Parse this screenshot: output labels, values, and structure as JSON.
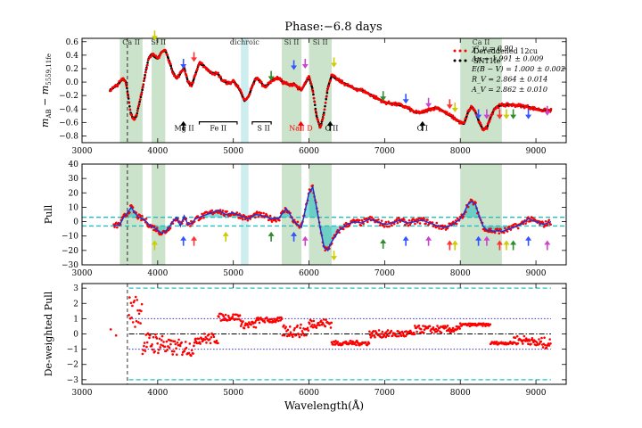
{
  "title": "Phase:−6.8 days",
  "chart_data": [
    {
      "type": "scatter",
      "panel": "top",
      "xlabel": "",
      "ylabel": "m_AB − m_5559,11fe",
      "ylabel_parts": {
        "base": "m",
        "sub1": "AB",
        "mid": " − m",
        "sub2": "5559,11fe"
      },
      "xlim": [
        3000,
        9400
      ],
      "ylim": [
        -0.9,
        0.65
      ],
      "xticks": [
        3000,
        4000,
        5000,
        6000,
        7000,
        8000,
        9000
      ],
      "yticks": [
        -0.8,
        -0.6,
        -0.4,
        -0.2,
        0.0,
        0.2,
        0.4,
        0.6
      ],
      "ytick_labels": [
        "−0.8",
        "−0.6",
        "−0.4",
        "−0.2",
        "0.0",
        "0.2",
        "0.4",
        "0.6"
      ],
      "legend": {
        "placement": "top-right",
        "entries": [
          {
            "label": "Dereddened 12cu",
            "color": "#ff0000"
          },
          {
            "label": "SN11fe",
            "color": "#000000"
          }
        ]
      },
      "stats": [
        "χ²_ν = 0.90",
        "Δμ = 1.991 ± 0.009",
        "E(B − V) = 1.000 ± 0.002",
        "R_V = 2.864 ± 0.014",
        "A_V = 2.862 ± 0.010"
      ],
      "bands": [
        {
          "x0": 3500,
          "x1": 3800,
          "color": "#2e8b2e",
          "label": "Ca II"
        },
        {
          "x0": 3920,
          "x1": 4100,
          "color": "#2e8b2e",
          "label": "Si II"
        },
        {
          "x0": 5100,
          "x1": 5200,
          "color": "#17b0b8",
          "label": "dichroic"
        },
        {
          "x0": 5640,
          "x1": 5900,
          "color": "#2e8b2e",
          "label": "Si II"
        },
        {
          "x0": 6000,
          "x1": 6300,
          "color": "#2e8b2e",
          "label": "Si II"
        },
        {
          "x0": 8000,
          "x1": 8550,
          "color": "#2e8b2e",
          "label": "Ca II"
        }
      ],
      "feature_labels": [
        {
          "label": "Mg II",
          "x": 4350,
          "color": "#000000"
        },
        {
          "label": "Fe II",
          "x": 4800,
          "color": "#000000"
        },
        {
          "label": "S II",
          "x": 5400,
          "color": "#000000"
        },
        {
          "label": "Na I D",
          "x": 5893,
          "color": "#ff0000"
        },
        {
          "label": "C II",
          "x": 6300,
          "color": "#000000"
        },
        {
          "label": "O I",
          "x": 7500,
          "color": "#000000"
        }
      ],
      "spectrum_anchors": {
        "x": [
          3370,
          3420,
          3460,
          3500,
          3540,
          3580,
          3610,
          3640,
          3680,
          3720,
          3760,
          3800,
          3840,
          3880,
          3920,
          3960,
          4000,
          4050,
          4100,
          4150,
          4200,
          4250,
          4300,
          4350,
          4400,
          4450,
          4500,
          4550,
          4600,
          4650,
          4700,
          4750,
          4800,
          4850,
          4900,
          4950,
          5000,
          5050,
          5100,
          5150,
          5200,
          5250,
          5300,
          5350,
          5400,
          5450,
          5500,
          5550,
          5600,
          5650,
          5700,
          5750,
          5800,
          5850,
          5900,
          5950,
          6000,
          6050,
          6100,
          6150,
          6200,
          6250,
          6300,
          6350,
          6400,
          6500,
          6600,
          6700,
          6800,
          6900,
          7000,
          7100,
          7200,
          7300,
          7400,
          7500,
          7600,
          7700,
          7800,
          7900,
          8000,
          8050,
          8100,
          8150,
          8200,
          8250,
          8300,
          8350,
          8400,
          8450,
          8500,
          8550,
          8600,
          8700,
          8800,
          8900,
          9000,
          9100,
          9200
        ],
        "y": [
          -0.12,
          -0.08,
          -0.05,
          0.0,
          0.05,
          0.0,
          -0.2,
          -0.45,
          -0.55,
          -0.5,
          -0.3,
          -0.1,
          0.15,
          0.35,
          0.42,
          0.38,
          0.35,
          0.44,
          0.48,
          0.32,
          0.15,
          0.05,
          0.13,
          0.22,
          0.0,
          -0.05,
          0.12,
          0.28,
          0.25,
          0.2,
          0.14,
          0.13,
          0.12,
          0.03,
          0.0,
          -0.02,
          0.02,
          -0.05,
          -0.15,
          -0.28,
          -0.22,
          -0.06,
          0.06,
          0.02,
          -0.06,
          -0.05,
          0.02,
          0.05,
          0.06,
          0.0,
          -0.02,
          -0.05,
          -0.02,
          -0.08,
          -0.12,
          -0.02,
          0.08,
          -0.12,
          -0.5,
          -0.68,
          -0.45,
          -0.08,
          0.1,
          0.06,
          0.02,
          -0.04,
          -0.1,
          -0.12,
          -0.18,
          -0.24,
          -0.3,
          -0.32,
          -0.34,
          -0.38,
          -0.45,
          -0.45,
          -0.4,
          -0.38,
          -0.45,
          -0.52,
          -0.6,
          -0.62,
          -0.45,
          -0.36,
          -0.44,
          -0.6,
          -0.7,
          -0.68,
          -0.52,
          -0.4,
          -0.36,
          -0.34,
          -0.34,
          -0.34,
          -0.35,
          -0.37,
          -0.4,
          -0.42,
          -0.42
        ]
      }
    },
    {
      "type": "scatter",
      "panel": "middle",
      "xlabel": "",
      "ylabel": "Pull",
      "xlim": [
        3000,
        9400
      ],
      "ylim": [
        -30,
        40
      ],
      "xticks": [
        3000,
        4000,
        5000,
        6000,
        7000,
        8000,
        9000
      ],
      "yticks": [
        -30,
        -20,
        -10,
        0,
        10,
        20,
        30,
        40
      ],
      "ytick_labels": [
        "−30",
        "−20",
        "−10",
        "0",
        "10",
        "20",
        "30",
        "40"
      ],
      "threshold_lines": [
        3,
        -3
      ],
      "pull_anchors": {
        "x": [
          3420,
          3500,
          3550,
          3600,
          3650,
          3700,
          3750,
          3800,
          3850,
          3900,
          3950,
          4000,
          4050,
          4100,
          4150,
          4200,
          4250,
          4300,
          4350,
          4400,
          4450,
          4500,
          4600,
          4700,
          4800,
          4900,
          5000,
          5100,
          5200,
          5300,
          5400,
          5500,
          5600,
          5650,
          5700,
          5750,
          5800,
          5850,
          5900,
          5950,
          6000,
          6050,
          6100,
          6150,
          6200,
          6250,
          6300,
          6350,
          6400,
          6500,
          6600,
          6700,
          6800,
          6900,
          7000,
          7100,
          7200,
          7300,
          7400,
          7500,
          7600,
          7700,
          7800,
          7900,
          8000,
          8050,
          8100,
          8150,
          8200,
          8250,
          8300,
          8350,
          8400,
          8450,
          8500,
          8550,
          8600,
          8700,
          8800,
          8900,
          9000,
          9100,
          9200
        ],
        "y": [
          -3,
          -2,
          3,
          6,
          10,
          6,
          3,
          2,
          0,
          -3,
          -4,
          -6,
          -8,
          -7,
          -4,
          0,
          3,
          -3,
          4,
          -2,
          -1,
          2,
          4,
          6,
          8,
          5,
          6,
          4,
          2,
          5,
          4,
          2,
          2,
          6,
          9,
          5,
          0,
          -2,
          -4,
          8,
          20,
          24,
          10,
          -5,
          -18,
          -20,
          -14,
          -10,
          -6,
          -2,
          0,
          -1,
          2,
          0,
          -2,
          -1,
          1,
          -1,
          0,
          1,
          -1,
          -3,
          -4,
          -2,
          2,
          6,
          12,
          14,
          12,
          4,
          -3,
          -6,
          -6,
          -7,
          -6,
          -7,
          -6,
          -4,
          -2,
          2,
          0,
          -2,
          0
        ]
      }
    },
    {
      "type": "scatter",
      "panel": "bottom",
      "xlabel": "Wavelength(Å)",
      "ylabel": "De-weighted Pull",
      "xlim": [
        3000,
        9400
      ],
      "ylim": [
        -3.3,
        3.3
      ],
      "xticks": [
        3000,
        4000,
        5000,
        6000,
        7000,
        8000,
        9000
      ],
      "yticks": [
        -3,
        -2,
        -1,
        0,
        1,
        2,
        3
      ],
      "ytick_labels": [
        "−3",
        "−2",
        "−1",
        "0",
        "1",
        "2",
        "3"
      ],
      "threshold_lines_cyan": [
        3,
        -3
      ],
      "threshold_lines_blue": [
        1,
        -1
      ],
      "segments": [
        {
          "x0": 3620,
          "x1": 3800,
          "center": 1.5,
          "spread": 1.8
        },
        {
          "x0": 3800,
          "x1": 4100,
          "center": -0.6,
          "spread": 1.2
        },
        {
          "x0": 4100,
          "x1": 4500,
          "center": -0.9,
          "spread": 0.9
        },
        {
          "x0": 4500,
          "x1": 4800,
          "center": -0.3,
          "spread": 0.6
        },
        {
          "x0": 4800,
          "x1": 5100,
          "center": 1.1,
          "spread": 0.4
        },
        {
          "x0": 5100,
          "x1": 5300,
          "center": 0.6,
          "spread": 0.4
        },
        {
          "x0": 5300,
          "x1": 5650,
          "center": 0.9,
          "spread": 0.3
        },
        {
          "x0": 5650,
          "x1": 6000,
          "center": 0.2,
          "spread": 0.7
        },
        {
          "x0": 6000,
          "x1": 6300,
          "center": 0.7,
          "spread": 0.5
        },
        {
          "x0": 6300,
          "x1": 6800,
          "center": -0.6,
          "spread": 0.25
        },
        {
          "x0": 6800,
          "x1": 7400,
          "center": 0.0,
          "spread": 0.4
        },
        {
          "x0": 7400,
          "x1": 8000,
          "center": 0.3,
          "spread": 0.4
        },
        {
          "x0": 8000,
          "x1": 8400,
          "center": 0.6,
          "spread": 0.15
        },
        {
          "x0": 8400,
          "x1": 8700,
          "center": -0.6,
          "spread": 0.15
        },
        {
          "x0": 8700,
          "x1": 8950,
          "center": -0.4,
          "spread": 0.5
        },
        {
          "x0": 8950,
          "x1": 9200,
          "center": -0.6,
          "spread": 0.6
        }
      ]
    }
  ],
  "arrows": {
    "top": [
      {
        "x": 3960,
        "color": "#cccc00",
        "dir": "down",
        "y": 0.62
      },
      {
        "x": 4340,
        "color": "#3355ff",
        "dir": "down",
        "y": 0.2
      },
      {
        "x": 4480,
        "color": "#ff3333",
        "dir": "down",
        "y": 0.3
      },
      {
        "x": 5500,
        "color": "#2e8b2e",
        "dir": "down",
        "y": 0.02
      },
      {
        "x": 5800,
        "color": "#3355ff",
        "dir": "down",
        "y": 0.18
      },
      {
        "x": 5950,
        "color": "#cc44cc",
        "dir": "down",
        "y": 0.2
      },
      {
        "x": 6330,
        "color": "#cccc00",
        "dir": "down",
        "y": 0.22
      },
      {
        "x": 6980,
        "color": "#2e8b2e",
        "dir": "down",
        "y": -0.28
      },
      {
        "x": 7280,
        "color": "#3355ff",
        "dir": "down",
        "y": -0.32
      },
      {
        "x": 7580,
        "color": "#cc44cc",
        "dir": "down",
        "y": -0.38
      },
      {
        "x": 7860,
        "color": "#ff3333",
        "dir": "down",
        "y": -0.4
      },
      {
        "x": 7930,
        "color": "#cccc00",
        "dir": "down",
        "y": -0.45
      },
      {
        "x": 8240,
        "color": "#3355ff",
        "dir": "down",
        "y": -0.55
      },
      {
        "x": 8350,
        "color": "#cc44cc",
        "dir": "down",
        "y": -0.55
      },
      {
        "x": 8520,
        "color": "#ff3333",
        "dir": "down",
        "y": -0.55
      },
      {
        "x": 8610,
        "color": "#cccc00",
        "dir": "down",
        "y": -0.55
      },
      {
        "x": 8700,
        "color": "#2e8b2e",
        "dir": "down",
        "y": -0.55
      },
      {
        "x": 8900,
        "color": "#3355ff",
        "dir": "down",
        "y": -0.55
      },
      {
        "x": 9150,
        "color": "#cc44cc",
        "dir": "down",
        "y": -0.5
      },
      {
        "x": 4340,
        "color": "#000000",
        "dir": "up",
        "y": -0.58
      },
      {
        "x": 5893,
        "color": "#ff0000",
        "dir": "up",
        "y": -0.58
      },
      {
        "x": 6280,
        "color": "#000000",
        "dir": "up",
        "y": -0.58
      },
      {
        "x": 7500,
        "color": "#000000",
        "dir": "up",
        "y": -0.58
      }
    ],
    "middle": [
      {
        "x": 3960,
        "color": "#cccc00",
        "dir": "up",
        "y": -13
      },
      {
        "x": 4340,
        "color": "#3355ff",
        "dir": "up",
        "y": -10
      },
      {
        "x": 4480,
        "color": "#ff3333",
        "dir": "up",
        "y": -10
      },
      {
        "x": 4900,
        "color": "#cccc00",
        "dir": "up",
        "y": -7
      },
      {
        "x": 5500,
        "color": "#2e8b2e",
        "dir": "up",
        "y": -7
      },
      {
        "x": 5800,
        "color": "#3355ff",
        "dir": "up",
        "y": -7
      },
      {
        "x": 5950,
        "color": "#cc44cc",
        "dir": "up",
        "y": -10
      },
      {
        "x": 6330,
        "color": "#cccc00",
        "dir": "down",
        "y": -27
      },
      {
        "x": 6980,
        "color": "#2e8b2e",
        "dir": "up",
        "y": -12
      },
      {
        "x": 7280,
        "color": "#3355ff",
        "dir": "up",
        "y": -10
      },
      {
        "x": 7580,
        "color": "#cc44cc",
        "dir": "up",
        "y": -10
      },
      {
        "x": 7860,
        "color": "#ff3333",
        "dir": "up",
        "y": -13
      },
      {
        "x": 7930,
        "color": "#cccc00",
        "dir": "up",
        "y": -13
      },
      {
        "x": 8240,
        "color": "#3355ff",
        "dir": "up",
        "y": -10
      },
      {
        "x": 8350,
        "color": "#cc44cc",
        "dir": "up",
        "y": -10
      },
      {
        "x": 8520,
        "color": "#ff3333",
        "dir": "up",
        "y": -13
      },
      {
        "x": 8610,
        "color": "#cccc00",
        "dir": "up",
        "y": -13
      },
      {
        "x": 8700,
        "color": "#2e8b2e",
        "dir": "up",
        "y": -13
      },
      {
        "x": 8900,
        "color": "#3355ff",
        "dir": "up",
        "y": -10
      },
      {
        "x": 9150,
        "color": "#cc44cc",
        "dir": "up",
        "y": -13
      }
    ]
  },
  "colors": {
    "dereddened": "#ff0000",
    "sn11fe": "#000000",
    "fit_line": "#2233cc",
    "band_green": "#2e8b2e",
    "band_cyan": "#17b0b8",
    "threshold_cyan": "#20c0c0",
    "threshold_blue": "#3030c0"
  }
}
